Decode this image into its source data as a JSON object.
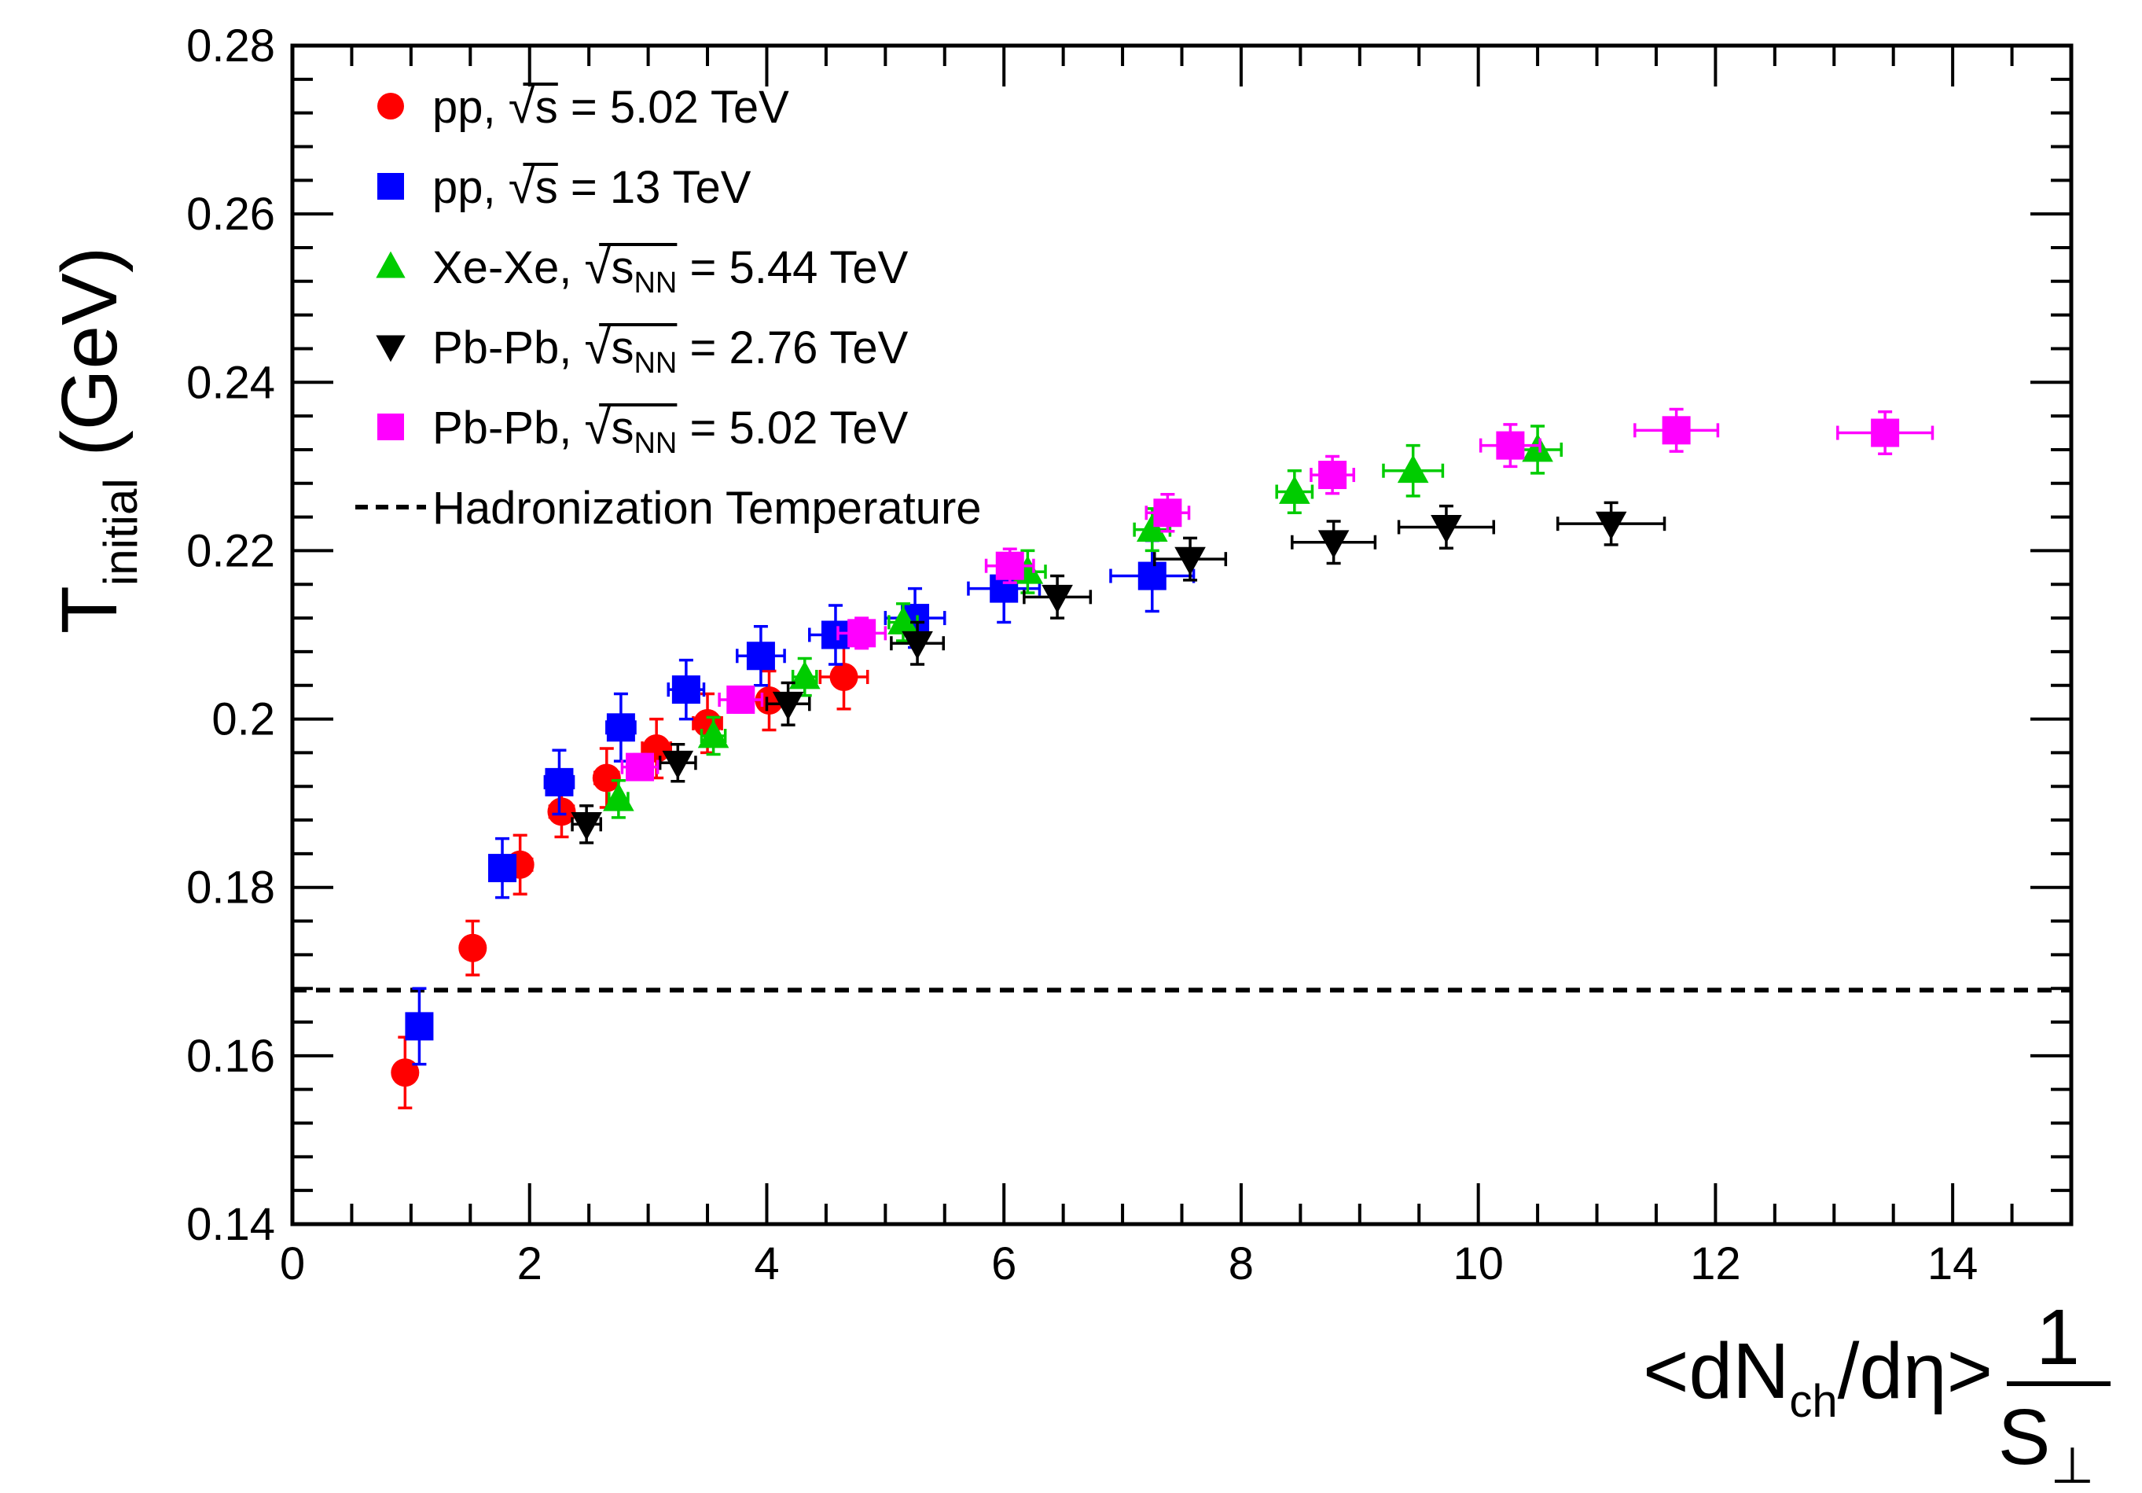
{
  "chart_data": {
    "type": "scatter",
    "title": "",
    "xlim": [
      0,
      15
    ],
    "ylim": [
      0.14,
      0.28
    ],
    "grid": false,
    "legend_position": "top-left",
    "x_ticks": [
      {
        "v": 0,
        "label": "0"
      },
      {
        "v": 2,
        "label": "2"
      },
      {
        "v": 4,
        "label": "4"
      },
      {
        "v": 6,
        "label": "6"
      },
      {
        "v": 8,
        "label": "8"
      },
      {
        "v": 10,
        "label": "10"
      },
      {
        "v": 12,
        "label": "12"
      },
      {
        "v": 14,
        "label": "14"
      }
    ],
    "y_ticks": [
      {
        "v": 0.14,
        "label": "0.14"
      },
      {
        "v": 0.16,
        "label": "0.16"
      },
      {
        "v": 0.18,
        "label": "0.18"
      },
      {
        "v": 0.2,
        "label": "0.2"
      },
      {
        "v": 0.22,
        "label": "0.22"
      },
      {
        "v": 0.24,
        "label": "0.24"
      },
      {
        "v": 0.26,
        "label": "0.26"
      },
      {
        "v": 0.28,
        "label": "0.28"
      }
    ],
    "xlabel": {
      "open": "<dN",
      "sub": "ch",
      "rest": "/dη>",
      "frac_num": "1",
      "frac_den": "S",
      "frac_den_sub": "⊥"
    },
    "ylabel": {
      "main": "T",
      "sub": "initial",
      "unit": "(GeV)"
    },
    "series": [
      {
        "name": "pp, 5.02 TeV",
        "legend": {
          "prefix": "pp, ",
          "root": "s",
          "root_sub": "",
          "suffix": " = 5.02 TeV"
        },
        "color": "#ff0000",
        "marker": "circle",
        "points": [
          {
            "x": 0.95,
            "y": 0.158,
            "xe": 0.0,
            "ye": 0.0042
          },
          {
            "x": 1.52,
            "y": 0.1728,
            "xe": 0.0,
            "ye": 0.0032
          },
          {
            "x": 1.92,
            "y": 0.1827,
            "xe": 0.1,
            "ye": 0.0035
          },
          {
            "x": 2.27,
            "y": 0.189,
            "xe": 0.1,
            "ye": 0.003
          },
          {
            "x": 2.65,
            "y": 0.193,
            "xe": 0.1,
            "ye": 0.0035
          },
          {
            "x": 3.07,
            "y": 0.1965,
            "xe": 0.12,
            "ye": 0.0035
          },
          {
            "x": 3.5,
            "y": 0.1995,
            "xe": 0.12,
            "ye": 0.0035
          },
          {
            "x": 4.02,
            "y": 0.2022,
            "xe": 0.15,
            "ye": 0.0035
          },
          {
            "x": 4.65,
            "y": 0.205,
            "xe": 0.2,
            "ye": 0.0038
          }
        ]
      },
      {
        "name": "pp, 13 TeV",
        "legend": {
          "prefix": "pp, ",
          "root": "s",
          "root_sub": "",
          "suffix": " = 13 TeV"
        },
        "color": "#0000ff",
        "marker": "square",
        "points": [
          {
            "x": 1.07,
            "y": 0.1635,
            "xe": 0.0,
            "ye": 0.0045
          },
          {
            "x": 1.77,
            "y": 0.1823,
            "xe": 0.1,
            "ye": 0.0035
          },
          {
            "x": 2.25,
            "y": 0.1925,
            "xe": 0.12,
            "ye": 0.0038
          },
          {
            "x": 2.77,
            "y": 0.199,
            "xe": 0.12,
            "ye": 0.004
          },
          {
            "x": 3.32,
            "y": 0.2035,
            "xe": 0.15,
            "ye": 0.0035
          },
          {
            "x": 3.95,
            "y": 0.2075,
            "xe": 0.2,
            "ye": 0.0035
          },
          {
            "x": 4.58,
            "y": 0.21,
            "xe": 0.22,
            "ye": 0.0035
          },
          {
            "x": 5.25,
            "y": 0.212,
            "xe": 0.25,
            "ye": 0.0035
          },
          {
            "x": 6.0,
            "y": 0.2155,
            "xe": 0.3,
            "ye": 0.004
          },
          {
            "x": 7.25,
            "y": 0.217,
            "xe": 0.35,
            "ye": 0.0042
          }
        ]
      },
      {
        "name": "Xe-Xe, 5.44 TeV",
        "legend": {
          "prefix": "Xe-Xe, ",
          "root": "s",
          "root_sub": "NN",
          "suffix": " = 5.44 TeV"
        },
        "color": "#00cc00",
        "marker": "triangle-up",
        "points": [
          {
            "x": 2.75,
            "y": 0.1905,
            "xe": 0.08,
            "ye": 0.0022
          },
          {
            "x": 3.55,
            "y": 0.198,
            "xe": 0.1,
            "ye": 0.0022
          },
          {
            "x": 4.32,
            "y": 0.205,
            "xe": 0.1,
            "ye": 0.0022
          },
          {
            "x": 5.15,
            "y": 0.2115,
            "xe": 0.12,
            "ye": 0.0022
          },
          {
            "x": 6.2,
            "y": 0.2175,
            "xe": 0.15,
            "ye": 0.0025
          },
          {
            "x": 7.25,
            "y": 0.2225,
            "xe": 0.15,
            "ye": 0.0025
          },
          {
            "x": 8.45,
            "y": 0.227,
            "xe": 0.15,
            "ye": 0.0025
          },
          {
            "x": 9.45,
            "y": 0.2295,
            "xe": 0.25,
            "ye": 0.003
          },
          {
            "x": 10.5,
            "y": 0.232,
            "xe": 0.2,
            "ye": 0.0028
          }
        ]
      },
      {
        "name": "Pb-Pb, 2.76 TeV",
        "legend": {
          "prefix": "Pb-Pb, ",
          "root": "s",
          "root_sub": "NN",
          "suffix": " = 2.76 TeV"
        },
        "color": "#000000",
        "marker": "triangle-down",
        "points": [
          {
            "x": 2.48,
            "y": 0.1875,
            "xe": 0.12,
            "ye": 0.0022
          },
          {
            "x": 3.25,
            "y": 0.1948,
            "xe": 0.15,
            "ye": 0.0022
          },
          {
            "x": 4.18,
            "y": 0.2018,
            "xe": 0.18,
            "ye": 0.0025
          },
          {
            "x": 5.27,
            "y": 0.209,
            "xe": 0.22,
            "ye": 0.0025
          },
          {
            "x": 6.45,
            "y": 0.2145,
            "xe": 0.28,
            "ye": 0.0025
          },
          {
            "x": 7.57,
            "y": 0.219,
            "xe": 0.3,
            "ye": 0.0025
          },
          {
            "x": 8.78,
            "y": 0.221,
            "xe": 0.35,
            "ye": 0.0025
          },
          {
            "x": 9.73,
            "y": 0.2228,
            "xe": 0.4,
            "ye": 0.0025
          },
          {
            "x": 11.12,
            "y": 0.2232,
            "xe": 0.45,
            "ye": 0.0025
          }
        ]
      },
      {
        "name": "Pb-Pb, 5.02 TeV",
        "legend": {
          "prefix": "Pb-Pb, ",
          "root": "s",
          "root_sub": "NN",
          "suffix": " = 5.02 TeV"
        },
        "color": "#ff00ff",
        "marker": "square",
        "points": [
          {
            "x": 2.93,
            "y": 0.1943,
            "xe": 0.15,
            "ye": 0.0015
          },
          {
            "x": 3.78,
            "y": 0.2023,
            "xe": 0.18,
            "ye": 0.0015
          },
          {
            "x": 4.8,
            "y": 0.2102,
            "xe": 0.2,
            "ye": 0.0018
          },
          {
            "x": 6.05,
            "y": 0.2182,
            "xe": 0.2,
            "ye": 0.002
          },
          {
            "x": 7.38,
            "y": 0.2245,
            "xe": 0.18,
            "ye": 0.0022
          },
          {
            "x": 8.77,
            "y": 0.229,
            "xe": 0.18,
            "ye": 0.0022
          },
          {
            "x": 10.27,
            "y": 0.2325,
            "xe": 0.25,
            "ye": 0.0025
          },
          {
            "x": 11.67,
            "y": 0.2343,
            "xe": 0.35,
            "ye": 0.0025
          },
          {
            "x": 13.43,
            "y": 0.234,
            "xe": 0.4,
            "ye": 0.0025
          }
        ]
      }
    ],
    "reference_line": {
      "name": "Hadronization Temperature",
      "y": 0.1678,
      "style": "dashed",
      "color": "#000000"
    }
  }
}
